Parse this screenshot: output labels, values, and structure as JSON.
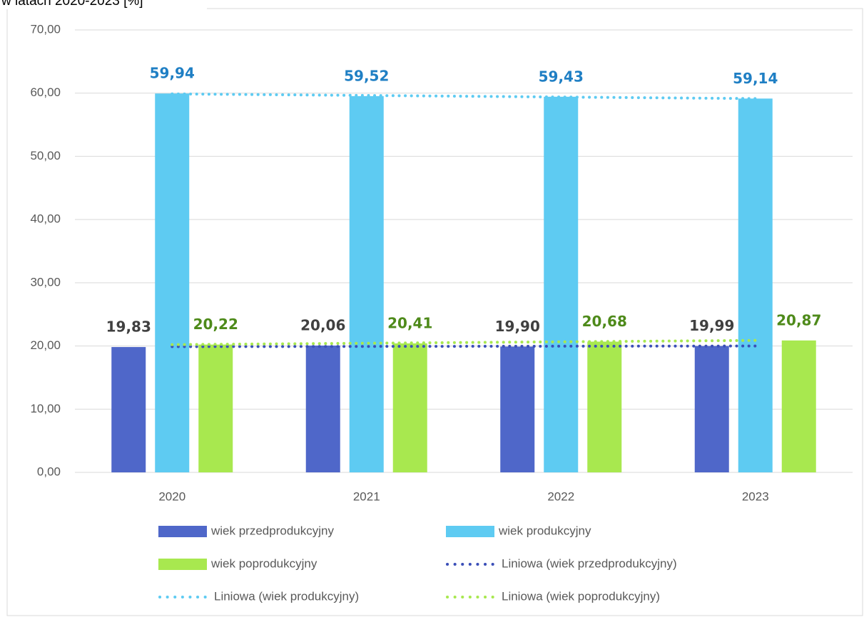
{
  "chart_data": {
    "type": "bar",
    "title": "w latach 2020-2023 [%]",
    "categories": [
      "2020",
      "2021",
      "2022",
      "2023"
    ],
    "series": [
      {
        "name": "wiek przedprodukcyjny",
        "color": "#4f67c9",
        "label_color": "#404040",
        "values": [
          19.83,
          20.06,
          19.9,
          19.99
        ],
        "value_labels": [
          "19,83",
          "20,06",
          "19,90",
          "19,99"
        ],
        "trendline": {
          "name": "Liniowa (wiek przedprodukcyjny)",
          "color": "#3b4fb8"
        }
      },
      {
        "name": "wiek produkcyjny",
        "color": "#5ecbf2",
        "label_color": "#1f7fc4",
        "values": [
          59.94,
          59.52,
          59.43,
          59.14
        ],
        "value_labels": [
          "59,94",
          "59,52",
          "59,43",
          "59,14"
        ],
        "trendline": {
          "name": "Liniowa (wiek produkcyjny)",
          "color": "#5ecbf2"
        }
      },
      {
        "name": "wiek poprodukcyjny",
        "color": "#a8e84f",
        "label_color": "#4e8a1a",
        "values": [
          20.22,
          20.41,
          20.68,
          20.87
        ],
        "value_labels": [
          "20,22",
          "20,41",
          "20,68",
          "20,87"
        ],
        "trendline": {
          "name": "Liniowa (wiek poprodukcyjny)",
          "color": "#a8e84f"
        }
      }
    ],
    "ylim": [
      0,
      70
    ],
    "yticks": [
      {
        "value": 0,
        "label": "0,00"
      },
      {
        "value": 10,
        "label": "10,00"
      },
      {
        "value": 20,
        "label": "20,00"
      },
      {
        "value": 30,
        "label": "30,00"
      },
      {
        "value": 40,
        "label": "40,00"
      },
      {
        "value": 50,
        "label": "50,00"
      },
      {
        "value": 60,
        "label": "60,00"
      },
      {
        "value": 70,
        "label": "70,00"
      }
    ],
    "grid": true
  }
}
